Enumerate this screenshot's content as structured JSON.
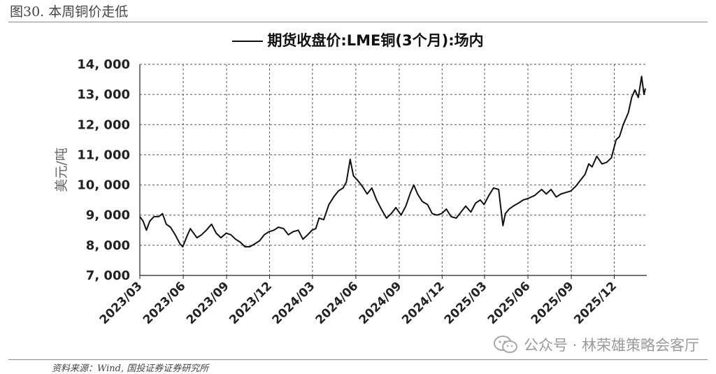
{
  "figure_title": "图30. 本周铜价走低",
  "watermark": "公众号 · 林荣雄策略会客厅",
  "source": "资料来源：Wind, 国投证券证券研究所",
  "chart_data": {
    "type": "line",
    "title": "",
    "xlabel": "",
    "ylabel": "美元/吨",
    "ylim": [
      7000,
      14000
    ],
    "yticks": [
      7000,
      8000,
      9000,
      10000,
      11000,
      12000,
      13000,
      14000
    ],
    "ytick_labels": [
      "7, 000",
      "8, 000",
      "9, 000",
      "10, 000",
      "11, 000",
      "12, 000",
      "13, 000",
      "14, 000"
    ],
    "xticks": [
      "2023/03",
      "2023/06",
      "2023/09",
      "2023/12",
      "2024/03",
      "2024/06",
      "2024/09",
      "2024/12",
      "2025/03",
      "2025/06",
      "2025/09",
      "2025/12"
    ],
    "grid": "horizontal dashed",
    "legend_position": "top-center",
    "series": [
      {
        "name": "期货收盘价:LME铜(3个月):场内",
        "color": "#111111",
        "points": [
          [
            "2023-03-01",
            8950
          ],
          [
            "2023-03-08",
            8800
          ],
          [
            "2023-03-15",
            8500
          ],
          [
            "2023-03-22",
            8800
          ],
          [
            "2023-03-31",
            8950
          ],
          [
            "2023-04-10",
            8950
          ],
          [
            "2023-04-18",
            9050
          ],
          [
            "2023-04-26",
            8700
          ],
          [
            "2023-05-05",
            8600
          ],
          [
            "2023-05-15",
            8350
          ],
          [
            "2023-05-25",
            8050
          ],
          [
            "2023-05-31",
            7950
          ],
          [
            "2023-06-09",
            8300
          ],
          [
            "2023-06-16",
            8550
          ],
          [
            "2023-06-23",
            8400
          ],
          [
            "2023-06-30",
            8250
          ],
          [
            "2023-07-10",
            8350
          ],
          [
            "2023-07-20",
            8500
          ],
          [
            "2023-07-31",
            8700
          ],
          [
            "2023-08-10",
            8400
          ],
          [
            "2023-08-20",
            8250
          ],
          [
            "2023-08-31",
            8400
          ],
          [
            "2023-09-10",
            8350
          ],
          [
            "2023-09-20",
            8200
          ],
          [
            "2023-09-30",
            8100
          ],
          [
            "2023-10-10",
            7950
          ],
          [
            "2023-10-20",
            7950
          ],
          [
            "2023-10-31",
            8050
          ],
          [
            "2023-11-10",
            8150
          ],
          [
            "2023-11-20",
            8350
          ],
          [
            "2023-11-30",
            8450
          ],
          [
            "2023-12-10",
            8500
          ],
          [
            "2023-12-20",
            8600
          ],
          [
            "2023-12-31",
            8550
          ],
          [
            "2024-01-10",
            8350
          ],
          [
            "2024-01-20",
            8450
          ],
          [
            "2024-01-31",
            8500
          ],
          [
            "2024-02-10",
            8200
          ],
          [
            "2024-02-20",
            8350
          ],
          [
            "2024-02-29",
            8500
          ],
          [
            "2024-03-08",
            8550
          ],
          [
            "2024-03-15",
            8900
          ],
          [
            "2024-03-25",
            8850
          ],
          [
            "2024-04-05",
            9350
          ],
          [
            "2024-04-15",
            9600
          ],
          [
            "2024-04-25",
            9800
          ],
          [
            "2024-05-05",
            9900
          ],
          [
            "2024-05-12",
            10100
          ],
          [
            "2024-05-20",
            10850
          ],
          [
            "2024-05-27",
            10300
          ],
          [
            "2024-06-05",
            10150
          ],
          [
            "2024-06-15",
            9950
          ],
          [
            "2024-06-25",
            9700
          ],
          [
            "2024-07-05",
            9900
          ],
          [
            "2024-07-15",
            9500
          ],
          [
            "2024-07-25",
            9200
          ],
          [
            "2024-08-05",
            8900
          ],
          [
            "2024-08-15",
            9050
          ],
          [
            "2024-08-25",
            9250
          ],
          [
            "2024-09-05",
            9000
          ],
          [
            "2024-09-15",
            9300
          ],
          [
            "2024-09-25",
            9750
          ],
          [
            "2024-10-02",
            10000
          ],
          [
            "2024-10-10",
            9700
          ],
          [
            "2024-10-20",
            9450
          ],
          [
            "2024-10-31",
            9350
          ],
          [
            "2024-11-10",
            9050
          ],
          [
            "2024-11-20",
            9000
          ],
          [
            "2024-11-30",
            9050
          ],
          [
            "2024-12-10",
            9200
          ],
          [
            "2024-12-20",
            8950
          ],
          [
            "2024-12-31",
            8900
          ],
          [
            "2025-01-10",
            9100
          ],
          [
            "2025-01-20",
            9300
          ],
          [
            "2025-01-31",
            9100
          ],
          [
            "2025-02-10",
            9400
          ],
          [
            "2025-02-20",
            9500
          ],
          [
            "2025-02-28",
            9350
          ],
          [
            "2025-03-10",
            9650
          ],
          [
            "2025-03-20",
            9900
          ],
          [
            "2025-03-31",
            9850
          ],
          [
            "2025-04-04",
            9300
          ],
          [
            "2025-04-09",
            8650
          ],
          [
            "2025-04-14",
            9050
          ],
          [
            "2025-04-22",
            9200
          ],
          [
            "2025-05-01",
            9300
          ],
          [
            "2025-05-12",
            9400
          ],
          [
            "2025-05-22",
            9500
          ],
          [
            "2025-06-01",
            9550
          ],
          [
            "2025-06-15",
            9650
          ],
          [
            "2025-06-30",
            9850
          ],
          [
            "2025-07-10",
            9700
          ],
          [
            "2025-07-20",
            9850
          ],
          [
            "2025-07-31",
            9600
          ],
          [
            "2025-08-10",
            9700
          ],
          [
            "2025-08-20",
            9750
          ],
          [
            "2025-08-31",
            9800
          ],
          [
            "2025-09-10",
            9950
          ],
          [
            "2025-09-20",
            10150
          ],
          [
            "2025-09-30",
            10350
          ],
          [
            "2025-10-08",
            10700
          ],
          [
            "2025-10-15",
            10600
          ],
          [
            "2025-10-25",
            10950
          ],
          [
            "2025-11-05",
            10700
          ],
          [
            "2025-11-15",
            10750
          ],
          [
            "2025-11-25",
            10900
          ],
          [
            "2025-12-05",
            11500
          ],
          [
            "2025-12-12",
            11600
          ],
          [
            "2025-12-20",
            12000
          ],
          [
            "2025-12-31",
            12400
          ],
          [
            "2026-01-07",
            12900
          ],
          [
            "2026-01-14",
            13150
          ],
          [
            "2026-01-21",
            12900
          ],
          [
            "2026-01-28",
            13600
          ],
          [
            "2026-02-02",
            13000
          ],
          [
            "2026-02-05",
            13200
          ]
        ]
      }
    ]
  }
}
